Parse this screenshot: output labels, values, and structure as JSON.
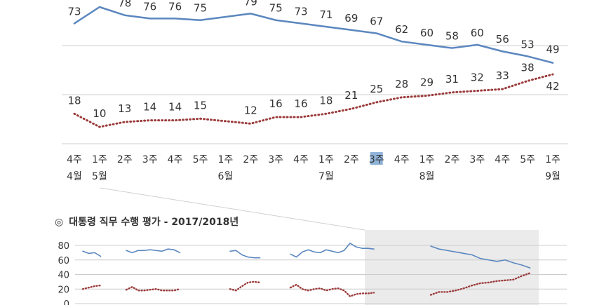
{
  "chart_data": [
    {
      "type": "line",
      "categories": [
        [
          "4주",
          "4월"
        ],
        [
          "1주",
          "5월"
        ],
        [
          "2주",
          ""
        ],
        [
          "3주",
          ""
        ],
        [
          "4주",
          ""
        ],
        [
          "5주",
          ""
        ],
        [
          "1주",
          "6월"
        ],
        [
          "2주",
          ""
        ],
        [
          "3주",
          ""
        ],
        [
          "4주",
          ""
        ],
        [
          "1주",
          "7월"
        ],
        [
          "2주",
          ""
        ],
        [
          "3주",
          ""
        ],
        [
          "4주",
          ""
        ],
        [
          "1주",
          "8월"
        ],
        [
          "2주",
          ""
        ],
        [
          "3주",
          ""
        ],
        [
          "4주",
          ""
        ],
        [
          "5주",
          ""
        ],
        [
          "1주",
          "9월"
        ]
      ],
      "highlight_index": 12,
      "highlight_color": "#8fb3d9",
      "series": [
        {
          "color": "#5b87bf",
          "style": "solid",
          "values": [
            73,
            83,
            78,
            76,
            76,
            75,
            79,
            75,
            73,
            71,
            69,
            67,
            62,
            60,
            58,
            60,
            56,
            53,
            49
          ],
          "positions": [
            0,
            1,
            2,
            3,
            4,
            5,
            7,
            8,
            9,
            10,
            11,
            12,
            13,
            14,
            15,
            16,
            17,
            18,
            19
          ]
        },
        {
          "color": "#9b3b3b",
          "style": "dotted",
          "values": [
            18,
            10,
            13,
            14,
            14,
            15,
            12,
            16,
            16,
            18,
            21,
            25,
            28,
            29,
            31,
            32,
            33,
            38,
            42
          ],
          "positions": [
            0,
            1,
            2,
            3,
            4,
            5,
            7,
            8,
            9,
            10,
            11,
            12,
            13,
            14,
            15,
            16,
            17,
            18,
            19
          ]
        }
      ],
      "grid": true
    },
    {
      "type": "line",
      "title": "대통령 직무 수행 평가 - 2017/2018년",
      "title_icon": "◎",
      "yticks": [
        "80",
        "60",
        "40",
        "20",
        "0"
      ],
      "ylim": [
        0,
        90
      ],
      "series": [
        {
          "color": "#5b87bf",
          "segments": [
            [
              72,
              69,
              70,
              65
            ],
            [
              73,
              70,
              73,
              73,
              74,
              73,
              72,
              75,
              74,
              70
            ],
            [
              72,
              73,
              67,
              64,
              63,
              63
            ],
            [
              68,
              64,
              71,
              74,
              71,
              70,
              74,
              72,
              70,
              73,
              83,
              78,
              76,
              76,
              75
            ],
            [
              79,
              75,
              73,
              71,
              69,
              67,
              62,
              60,
              58,
              60,
              56,
              53,
              49
            ]
          ]
        },
        {
          "color": "#9b3b3b",
          "segments": [
            [
              20,
              22,
              24,
              25
            ],
            [
              19,
              23,
              18,
              18,
              19,
              20,
              18,
              18,
              18,
              20
            ],
            [
              20,
              18,
              24,
              29,
              30,
              29
            ],
            [
              22,
              26,
              20,
              18,
              20,
              21,
              18,
              20,
              21,
              18,
              10,
              13,
              14,
              14,
              15
            ],
            [
              12,
              16,
              16,
              18,
              21,
              25,
              28,
              29,
              31,
              32,
              33,
              38,
              42
            ]
          ]
        }
      ]
    }
  ]
}
